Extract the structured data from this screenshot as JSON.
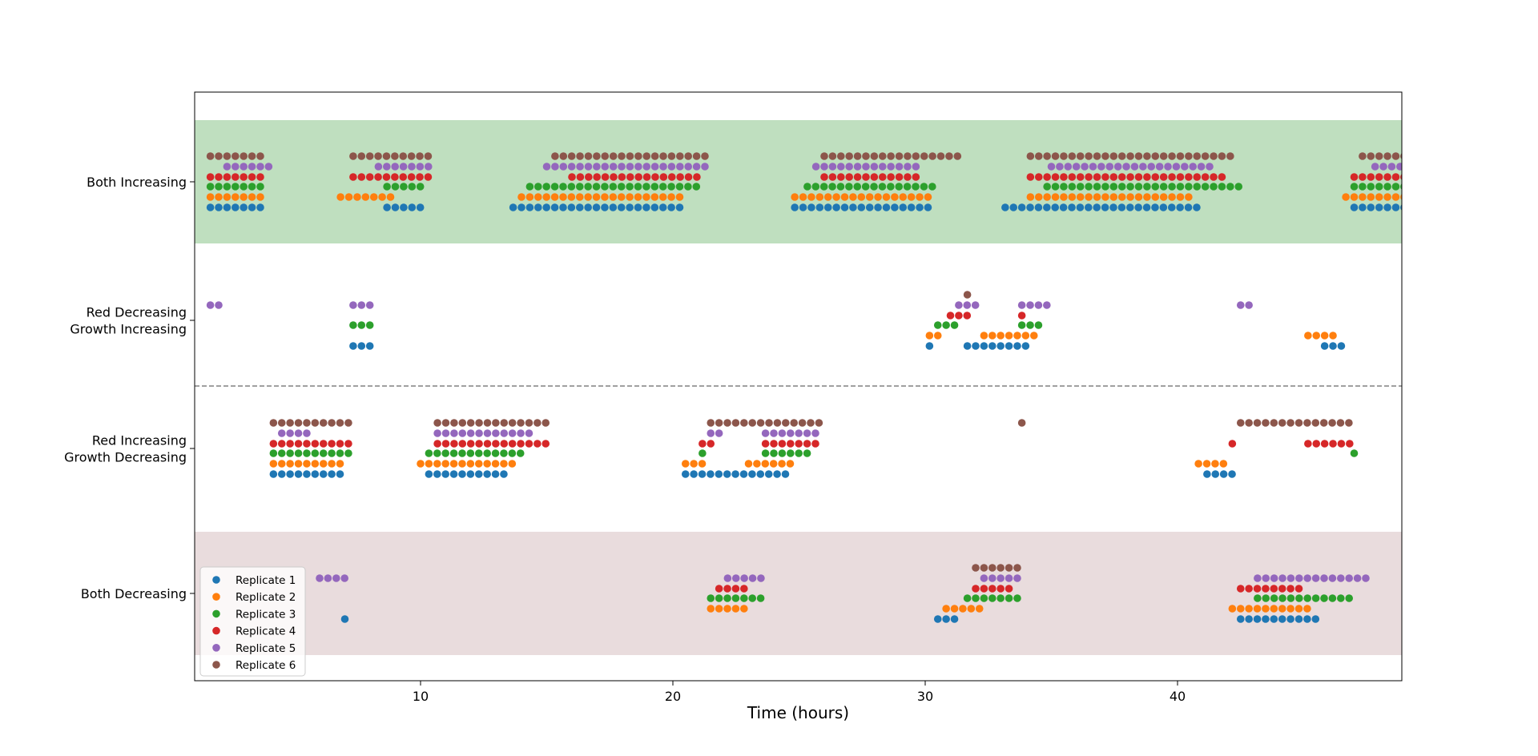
{
  "chart_data": {
    "type": "scatter",
    "title": "",
    "xlabel": "Time (hours)",
    "ylabel": "",
    "xlim": [
      1,
      49
    ],
    "x_ticks": [
      10,
      20,
      30,
      40
    ],
    "x_tick_labels": [
      "10",
      "20",
      "30",
      "40"
    ],
    "categories": [
      "Both Increasing",
      "Red Decreasing\nGrowth Increasing",
      "Red Increasing\nGrowth Decreasing",
      "Both Decreasing"
    ],
    "category_label_lines": [
      [
        "Both Increasing"
      ],
      [
        "Red Decreasing",
        "Growth Increasing"
      ],
      [
        "Red Increasing",
        "Growth Decreasing"
      ],
      [
        "Both Decreasing"
      ]
    ],
    "shaded_bands": [
      {
        "category": "Both Increasing",
        "color": "#bfdfbf"
      },
      {
        "category": "Both Decreasing",
        "color": "#e9dcdd"
      }
    ],
    "divider": {
      "between": [
        "Red Decreasing\nGrowth Increasing",
        "Red Increasing\nGrowth Decreasing"
      ],
      "style": "dashed",
      "color": "#808080"
    },
    "grid": false,
    "legend_position": "bottom-left",
    "time_step_hours": 0.33,
    "series": [
      {
        "name": "Replicate 1",
        "color": "#1f77b4",
        "runs": [
          {
            "category": "Both Increasing",
            "start": 1.67,
            "end": 3.67
          },
          {
            "category": "Both Increasing",
            "start": 8.67,
            "end": 10.0
          },
          {
            "category": "Both Increasing",
            "start": 13.67,
            "end": 20.33
          },
          {
            "category": "Both Increasing",
            "start": 24.83,
            "end": 30.0
          },
          {
            "category": "Both Increasing",
            "start": 33.17,
            "end": 40.67
          },
          {
            "category": "Both Increasing",
            "start": 47.0,
            "end": 49.0
          },
          {
            "category": "Red Decreasing\nGrowth Increasing",
            "start": 7.33,
            "end": 8.0
          },
          {
            "category": "Red Decreasing\nGrowth Increasing",
            "start": 30.17,
            "end": 30.17
          },
          {
            "category": "Red Decreasing\nGrowth Increasing",
            "start": 31.67,
            "end": 33.83
          },
          {
            "category": "Red Decreasing\nGrowth Increasing",
            "start": 45.83,
            "end": 46.5
          },
          {
            "category": "Red Increasing\nGrowth Decreasing",
            "start": 4.17,
            "end": 6.83
          },
          {
            "category": "Red Increasing\nGrowth Decreasing",
            "start": 10.33,
            "end": 13.33
          },
          {
            "category": "Red Increasing\nGrowth Decreasing",
            "start": 20.5,
            "end": 24.5
          },
          {
            "category": "Red Increasing\nGrowth Decreasing",
            "start": 41.17,
            "end": 42.17
          },
          {
            "category": "Both Decreasing",
            "start": 7.0,
            "end": 7.0
          },
          {
            "category": "Both Decreasing",
            "start": 30.5,
            "end": 31.17
          },
          {
            "category": "Both Decreasing",
            "start": 42.5,
            "end": 45.5
          }
        ]
      },
      {
        "name": "Replicate 2",
        "color": "#ff7f0e",
        "runs": [
          {
            "category": "Both Increasing",
            "start": 1.67,
            "end": 3.67
          },
          {
            "category": "Both Increasing",
            "start": 6.83,
            "end": 8.83
          },
          {
            "category": "Both Increasing",
            "start": 14.0,
            "end": 20.33
          },
          {
            "category": "Both Increasing",
            "start": 24.83,
            "end": 30.0
          },
          {
            "category": "Both Increasing",
            "start": 34.17,
            "end": 40.33
          },
          {
            "category": "Both Increasing",
            "start": 46.67,
            "end": 49.0
          },
          {
            "category": "Red Decreasing\nGrowth Increasing",
            "start": 30.17,
            "end": 30.5
          },
          {
            "category": "Red Decreasing\nGrowth Increasing",
            "start": 32.33,
            "end": 34.17
          },
          {
            "category": "Red Decreasing\nGrowth Increasing",
            "start": 45.17,
            "end": 46.17
          },
          {
            "category": "Red Increasing\nGrowth Decreasing",
            "start": 4.17,
            "end": 6.83
          },
          {
            "category": "Red Increasing\nGrowth Decreasing",
            "start": 10.0,
            "end": 13.67
          },
          {
            "category": "Red Increasing\nGrowth Decreasing",
            "start": 20.5,
            "end": 21.17
          },
          {
            "category": "Red Increasing\nGrowth Decreasing",
            "start": 23.0,
            "end": 24.5
          },
          {
            "category": "Red Increasing\nGrowth Decreasing",
            "start": 40.83,
            "end": 41.83
          },
          {
            "category": "Both Decreasing",
            "start": 21.5,
            "end": 22.67
          },
          {
            "category": "Both Decreasing",
            "start": 30.83,
            "end": 32.0
          },
          {
            "category": "Both Decreasing",
            "start": 42.17,
            "end": 45.17
          }
        ]
      },
      {
        "name": "Replicate 3",
        "color": "#2ca02c",
        "runs": [
          {
            "category": "Both Increasing",
            "start": 1.67,
            "end": 3.67
          },
          {
            "category": "Both Increasing",
            "start": 8.67,
            "end": 10.0
          },
          {
            "category": "Both Increasing",
            "start": 14.33,
            "end": 20.83
          },
          {
            "category": "Both Increasing",
            "start": 25.33,
            "end": 30.17
          },
          {
            "category": "Both Increasing",
            "start": 34.83,
            "end": 42.5
          },
          {
            "category": "Both Increasing",
            "start": 47.0,
            "end": 49.0
          },
          {
            "category": "Red Decreasing\nGrowth Increasing",
            "start": 7.33,
            "end": 8.0
          },
          {
            "category": "Red Decreasing\nGrowth Increasing",
            "start": 30.5,
            "end": 31.17
          },
          {
            "category": "Red Decreasing\nGrowth Increasing",
            "start": 33.83,
            "end": 34.5
          },
          {
            "category": "Red Increasing\nGrowth Decreasing",
            "start": 4.17,
            "end": 7.17
          },
          {
            "category": "Red Increasing\nGrowth Decreasing",
            "start": 10.33,
            "end": 14.0
          },
          {
            "category": "Red Increasing\nGrowth Decreasing",
            "start": 21.17,
            "end": 21.17
          },
          {
            "category": "Red Increasing\nGrowth Decreasing",
            "start": 23.67,
            "end": 25.33
          },
          {
            "category": "Red Increasing\nGrowth Decreasing",
            "start": 47.0,
            "end": 47.0
          },
          {
            "category": "Both Decreasing",
            "start": 21.5,
            "end": 23.33
          },
          {
            "category": "Both Decreasing",
            "start": 31.67,
            "end": 33.5
          },
          {
            "category": "Both Decreasing",
            "start": 43.17,
            "end": 46.67
          }
        ]
      },
      {
        "name": "Replicate 4",
        "color": "#d62728",
        "runs": [
          {
            "category": "Both Increasing",
            "start": 1.67,
            "end": 3.67
          },
          {
            "category": "Both Increasing",
            "start": 7.33,
            "end": 10.33
          },
          {
            "category": "Both Increasing",
            "start": 16.0,
            "end": 21.0
          },
          {
            "category": "Both Increasing",
            "start": 26.0,
            "end": 29.67
          },
          {
            "category": "Both Increasing",
            "start": 34.17,
            "end": 41.83
          },
          {
            "category": "Both Increasing",
            "start": 47.0,
            "end": 49.0
          },
          {
            "category": "Red Decreasing\nGrowth Increasing",
            "start": 31.0,
            "end": 31.67
          },
          {
            "category": "Red Decreasing\nGrowth Increasing",
            "start": 33.83,
            "end": 33.83
          },
          {
            "category": "Red Increasing\nGrowth Decreasing",
            "start": 4.17,
            "end": 7.17
          },
          {
            "category": "Red Increasing\nGrowth Decreasing",
            "start": 10.67,
            "end": 14.83
          },
          {
            "category": "Red Increasing\nGrowth Decreasing",
            "start": 21.17,
            "end": 21.5
          },
          {
            "category": "Red Increasing\nGrowth Decreasing",
            "start": 23.67,
            "end": 25.67
          },
          {
            "category": "Red Increasing\nGrowth Decreasing",
            "start": 42.17,
            "end": 42.17
          },
          {
            "category": "Red Increasing\nGrowth Decreasing",
            "start": 45.17,
            "end": 46.83
          },
          {
            "category": "Both Decreasing",
            "start": 21.83,
            "end": 22.83
          },
          {
            "category": "Both Decreasing",
            "start": 32.0,
            "end": 33.17
          },
          {
            "category": "Both Decreasing",
            "start": 42.5,
            "end": 44.83
          }
        ]
      },
      {
        "name": "Replicate 5",
        "color": "#9467bd",
        "runs": [
          {
            "category": "Both Increasing",
            "start": 2.33,
            "end": 4.0
          },
          {
            "category": "Both Increasing",
            "start": 8.33,
            "end": 10.33
          },
          {
            "category": "Both Increasing",
            "start": 15.0,
            "end": 21.17
          },
          {
            "category": "Both Increasing",
            "start": 25.67,
            "end": 29.67
          },
          {
            "category": "Both Increasing",
            "start": 35.0,
            "end": 41.17
          },
          {
            "category": "Both Increasing",
            "start": 47.83,
            "end": 49.0
          },
          {
            "category": "Red Decreasing\nGrowth Increasing",
            "start": 1.67,
            "end": 2.0
          },
          {
            "category": "Red Decreasing\nGrowth Increasing",
            "start": 7.33,
            "end": 8.0
          },
          {
            "category": "Red Decreasing\nGrowth Increasing",
            "start": 31.33,
            "end": 32.0
          },
          {
            "category": "Red Decreasing\nGrowth Increasing",
            "start": 33.83,
            "end": 34.83
          },
          {
            "category": "Red Decreasing\nGrowth Increasing",
            "start": 42.5,
            "end": 42.83
          },
          {
            "category": "Red Increasing\nGrowth Decreasing",
            "start": 4.5,
            "end": 5.5
          },
          {
            "category": "Red Increasing\nGrowth Decreasing",
            "start": 10.67,
            "end": 14.33
          },
          {
            "category": "Red Increasing\nGrowth Decreasing",
            "start": 21.5,
            "end": 21.83
          },
          {
            "category": "Red Increasing\nGrowth Decreasing",
            "start": 23.67,
            "end": 25.67
          },
          {
            "category": "Both Decreasing",
            "start": 6.0,
            "end": 7.0
          },
          {
            "category": "Both Decreasing",
            "start": 22.17,
            "end": 23.33
          },
          {
            "category": "Both Decreasing",
            "start": 32.33,
            "end": 33.5
          },
          {
            "category": "Both Decreasing",
            "start": 43.17,
            "end": 47.5
          }
        ]
      },
      {
        "name": "Replicate 6",
        "color": "#8c564b",
        "runs": [
          {
            "category": "Both Increasing",
            "start": 1.67,
            "end": 3.67
          },
          {
            "category": "Both Increasing",
            "start": 7.33,
            "end": 10.33
          },
          {
            "category": "Both Increasing",
            "start": 15.33,
            "end": 21.17
          },
          {
            "category": "Both Increasing",
            "start": 26.0,
            "end": 31.33
          },
          {
            "category": "Both Increasing",
            "start": 34.17,
            "end": 42.17
          },
          {
            "category": "Both Increasing",
            "start": 47.33,
            "end": 49.0
          },
          {
            "category": "Red Decreasing\nGrowth Increasing",
            "start": 31.67,
            "end": 31.67
          },
          {
            "category": "Red Increasing\nGrowth Decreasing",
            "start": 4.17,
            "end": 7.17
          },
          {
            "category": "Red Increasing\nGrowth Decreasing",
            "start": 10.67,
            "end": 14.83
          },
          {
            "category": "Red Increasing\nGrowth Decreasing",
            "start": 21.5,
            "end": 25.67
          },
          {
            "category": "Red Increasing\nGrowth Decreasing",
            "start": 33.83,
            "end": 33.83
          },
          {
            "category": "Red Increasing\nGrowth Decreasing",
            "start": 42.5,
            "end": 46.83
          },
          {
            "category": "Both Decreasing",
            "start": 32.0,
            "end": 33.5
          }
        ]
      }
    ]
  }
}
